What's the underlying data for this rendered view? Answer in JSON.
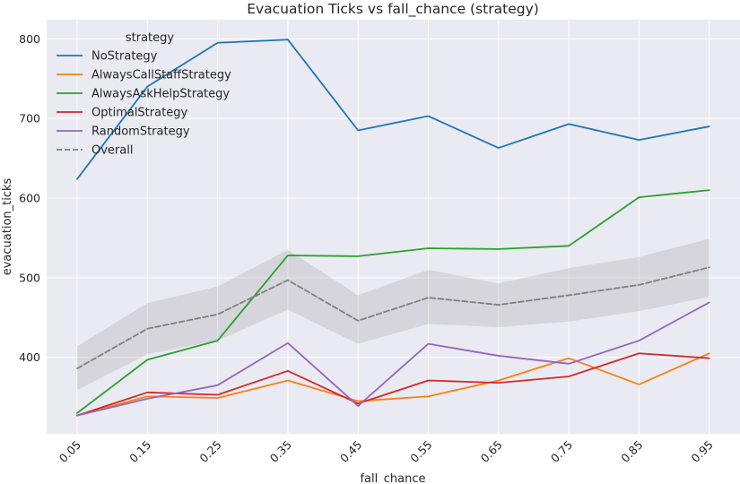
{
  "chart_data": {
    "type": "line",
    "title": "Evacuation Ticks vs fall_chance (strategy)",
    "xlabel": "fall_chance",
    "ylabel": "evacuation_ticks",
    "categories": [
      "0.05",
      "0.15",
      "0.25",
      "0.35",
      "0.45",
      "0.55",
      "0.65",
      "0.75",
      "0.85",
      "0.95"
    ],
    "ylim": [
      304,
      824
    ],
    "yticks": [
      400,
      500,
      600,
      700,
      800
    ],
    "grid": true,
    "legend": {
      "title": "strategy",
      "placement": "top-left"
    },
    "series": [
      {
        "name": "NoStrategy",
        "color": "#1f77b4",
        "dashed": false,
        "values": [
          624,
          740,
          795,
          799,
          685,
          703,
          663,
          693,
          673,
          690
        ]
      },
      {
        "name": "AlwaysCallStaffStrategy",
        "color": "#ff7f0e",
        "dashed": false,
        "values": [
          327,
          351,
          349,
          371,
          345,
          351,
          371,
          399,
          366,
          405
        ]
      },
      {
        "name": "AlwaysAskHelpStrategy",
        "color": "#2ca02c",
        "dashed": false,
        "values": [
          330,
          397,
          421,
          528,
          527,
          537,
          536,
          540,
          601,
          610
        ]
      },
      {
        "name": "OptimalStrategy",
        "color": "#d62728",
        "dashed": false,
        "values": [
          327,
          356,
          353,
          383,
          342,
          371,
          368,
          376,
          405,
          399
        ]
      },
      {
        "name": "RandomStrategy",
        "color": "#9467bd",
        "dashed": false,
        "values": [
          327,
          348,
          365,
          418,
          339,
          417,
          402,
          392,
          421,
          469
        ]
      },
      {
        "name": "Overall",
        "color": "#808080",
        "dashed": true,
        "values": [
          386,
          436,
          454,
          497,
          446,
          475,
          466,
          478,
          491,
          513
        ],
        "band_low": [
          359,
          404,
          421,
          460,
          417,
          442,
          438,
          445,
          458,
          476
        ],
        "band_high": [
          414,
          468,
          489,
          535,
          478,
          510,
          493,
          512,
          526,
          549
        ]
      }
    ]
  }
}
